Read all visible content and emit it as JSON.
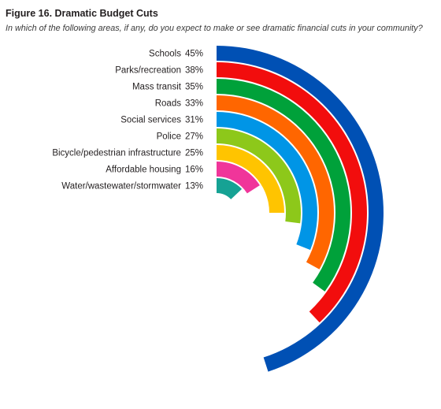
{
  "figure": {
    "title": "Figure 16. Dramatic Budget Cuts",
    "subtitle": "In which of the following areas, if any, do you expect to make or see dramatic financial cuts in your community?"
  },
  "chart_data": {
    "type": "radial-bar",
    "title": "Figure 16. Dramatic Budget Cuts",
    "subtitle": "In which of the following areas, if any, do you expect to make or see dramatic financial cuts in your community?",
    "unit": "%",
    "categories": [
      "Schools",
      "Parks/recreation",
      "Mass transit",
      "Roads",
      "Social services",
      "Police",
      "Bicycle/pedestrian infrastructure",
      "Affordable housing",
      "Water/wastewater/stormwater"
    ],
    "values": [
      45,
      38,
      35,
      33,
      31,
      27,
      25,
      16,
      13
    ],
    "value_labels": [
      "45%",
      "38%",
      "35%",
      "33%",
      "31%",
      "27%",
      "25%",
      "16%",
      "13%"
    ],
    "colors": [
      "#0050b4",
      "#f20d0d",
      "#00a13a",
      "#ff6600",
      "#0095e6",
      "#8dc81a",
      "#ffc400",
      "#f0359a",
      "#16a294"
    ],
    "axis_max": 100,
    "legend": "none",
    "grid": false
  }
}
